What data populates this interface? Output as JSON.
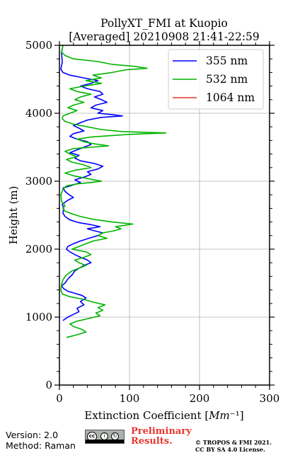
{
  "chart_data": {
    "type": "line",
    "title": [
      "PollyXT_FMI at Kuopio",
      "[Averaged] 20210908 21:41-22:59"
    ],
    "xlabel": "Extinction Coefficient [Mm⁻¹]",
    "ylabel": "Height (m)",
    "xlim": [
      0,
      300
    ],
    "ylim": [
      0,
      5000
    ],
    "xticks": [
      "0",
      "100",
      "200",
      "300"
    ],
    "yticks": [
      "0",
      "1000",
      "2000",
      "3000",
      "4000",
      "5000"
    ],
    "grid": true,
    "legend_position": "top-right",
    "series": [
      {
        "name": "355 nm",
        "color": "#0000ff",
        "points": [
          [
            5,
            950
          ],
          [
            12,
            1000
          ],
          [
            20,
            1040
          ],
          [
            28,
            1080
          ],
          [
            25,
            1130
          ],
          [
            35,
            1180
          ],
          [
            30,
            1230
          ],
          [
            38,
            1280
          ],
          [
            32,
            1320
          ],
          [
            22,
            1350
          ],
          [
            12,
            1380
          ],
          [
            6,
            1420
          ],
          [
            3,
            1460
          ],
          [
            8,
            1500
          ],
          [
            12,
            1560
          ],
          [
            18,
            1620
          ],
          [
            22,
            1680
          ],
          [
            28,
            1720
          ],
          [
            35,
            1760
          ],
          [
            45,
            1800
          ],
          [
            40,
            1840
          ],
          [
            30,
            1880
          ],
          [
            22,
            1920
          ],
          [
            15,
            1960
          ],
          [
            10,
            2000
          ],
          [
            12,
            2040
          ],
          [
            20,
            2080
          ],
          [
            30,
            2120
          ],
          [
            42,
            2160
          ],
          [
            55,
            2200
          ],
          [
            62,
            2240
          ],
          [
            50,
            2270
          ],
          [
            40,
            2300
          ],
          [
            58,
            2330
          ],
          [
            45,
            2360
          ],
          [
            28,
            2390
          ],
          [
            15,
            2430
          ],
          [
            8,
            2480
          ],
          [
            5,
            2530
          ],
          [
            6,
            2600
          ],
          [
            4,
            2660
          ],
          [
            12,
            2720
          ],
          [
            20,
            2760
          ],
          [
            14,
            2800
          ],
          [
            8,
            2850
          ],
          [
            5,
            2900
          ],
          [
            18,
            2940
          ],
          [
            30,
            2980
          ],
          [
            22,
            3020
          ],
          [
            35,
            3060
          ],
          [
            45,
            3100
          ],
          [
            40,
            3140
          ],
          [
            55,
            3180
          ],
          [
            62,
            3220
          ],
          [
            50,
            3260
          ],
          [
            30,
            3300
          ],
          [
            22,
            3340
          ],
          [
            28,
            3380
          ],
          [
            15,
            3420
          ],
          [
            25,
            3460
          ],
          [
            35,
            3500
          ],
          [
            45,
            3540
          ],
          [
            40,
            3580
          ],
          [
            25,
            3620
          ],
          [
            15,
            3660
          ],
          [
            20,
            3700
          ],
          [
            35,
            3740
          ],
          [
            28,
            3780
          ],
          [
            20,
            3820
          ],
          [
            30,
            3860
          ],
          [
            40,
            3900
          ],
          [
            60,
            3940
          ],
          [
            90,
            3960
          ],
          [
            75,
            3980
          ],
          [
            55,
            4000
          ],
          [
            62,
            4040
          ],
          [
            45,
            4080
          ],
          [
            52,
            4120
          ],
          [
            68,
            4160
          ],
          [
            60,
            4200
          ],
          [
            50,
            4240
          ],
          [
            62,
            4280
          ],
          [
            58,
            4320
          ],
          [
            40,
            4360
          ],
          [
            30,
            4400
          ],
          [
            45,
            4440
          ],
          [
            55,
            4480
          ],
          [
            35,
            4520
          ],
          [
            15,
            4560
          ],
          [
            5,
            4600
          ],
          [
            2,
            4650
          ],
          [
            4,
            4750
          ],
          [
            3,
            4900
          ],
          [
            5,
            5000
          ]
        ]
      },
      {
        "name": "532 nm",
        "color": "#00b400",
        "points": [
          [
            10,
            700
          ],
          [
            25,
            740
          ],
          [
            38,
            780
          ],
          [
            32,
            820
          ],
          [
            20,
            860
          ],
          [
            15,
            900
          ],
          [
            25,
            940
          ],
          [
            42,
            980
          ],
          [
            58,
            1020
          ],
          [
            52,
            1060
          ],
          [
            62,
            1100
          ],
          [
            55,
            1140
          ],
          [
            65,
            1180
          ],
          [
            48,
            1220
          ],
          [
            35,
            1260
          ],
          [
            15,
            1300
          ],
          [
            4,
            1340
          ],
          [
            2,
            1400
          ],
          [
            3,
            1480
          ],
          [
            5,
            1550
          ],
          [
            10,
            1620
          ],
          [
            18,
            1680
          ],
          [
            28,
            1720
          ],
          [
            38,
            1760
          ],
          [
            28,
            1800
          ],
          [
            22,
            1840
          ],
          [
            35,
            1880
          ],
          [
            45,
            1920
          ],
          [
            38,
            1960
          ],
          [
            18,
            2000
          ],
          [
            28,
            2040
          ],
          [
            38,
            2080
          ],
          [
            48,
            2120
          ],
          [
            68,
            2160
          ],
          [
            55,
            2200
          ],
          [
            62,
            2240
          ],
          [
            78,
            2270
          ],
          [
            88,
            2300
          ],
          [
            80,
            2330
          ],
          [
            105,
            2370
          ],
          [
            75,
            2400
          ],
          [
            48,
            2440
          ],
          [
            30,
            2480
          ],
          [
            18,
            2520
          ],
          [
            8,
            2560
          ],
          [
            5,
            2600
          ],
          [
            8,
            2640
          ],
          [
            3,
            2700
          ],
          [
            2,
            2800
          ],
          [
            5,
            2880
          ],
          [
            10,
            2930
          ],
          [
            25,
            2960
          ],
          [
            45,
            2980
          ],
          [
            60,
            3000
          ],
          [
            40,
            3040
          ],
          [
            20,
            3080
          ],
          [
            8,
            3120
          ],
          [
            22,
            3160
          ],
          [
            45,
            3200
          ],
          [
            35,
            3240
          ],
          [
            18,
            3280
          ],
          [
            10,
            3320
          ],
          [
            25,
            3360
          ],
          [
            15,
            3400
          ],
          [
            8,
            3440
          ],
          [
            20,
            3480
          ],
          [
            45,
            3500
          ],
          [
            70,
            3520
          ],
          [
            50,
            3550
          ],
          [
            35,
            3580
          ],
          [
            25,
            3620
          ],
          [
            45,
            3650
          ],
          [
            100,
            3690
          ],
          [
            152,
            3710
          ],
          [
            90,
            3730
          ],
          [
            60,
            3760
          ],
          [
            40,
            3800
          ],
          [
            20,
            3840
          ],
          [
            8,
            3880
          ],
          [
            4,
            3920
          ],
          [
            5,
            3960
          ],
          [
            15,
            4000
          ],
          [
            25,
            4040
          ],
          [
            12,
            4080
          ],
          [
            20,
            4120
          ],
          [
            35,
            4160
          ],
          [
            22,
            4200
          ],
          [
            30,
            4240
          ],
          [
            45,
            4280
          ],
          [
            25,
            4320
          ],
          [
            15,
            4360
          ],
          [
            35,
            4400
          ],
          [
            60,
            4440
          ],
          [
            38,
            4480
          ],
          [
            60,
            4520
          ],
          [
            48,
            4560
          ],
          [
            75,
            4600
          ],
          [
            95,
            4640
          ],
          [
            125,
            4660
          ],
          [
            108,
            4690
          ],
          [
            75,
            4720
          ],
          [
            55,
            4760
          ],
          [
            20,
            4800
          ],
          [
            8,
            4850
          ],
          [
            3,
            4900
          ],
          [
            5,
            5000
          ]
        ]
      },
      {
        "name": "1064 nm",
        "color": "#e8362e",
        "points": []
      }
    ]
  },
  "footer": {
    "version": "Version: 2.0",
    "method": "Method: Raman",
    "preliminary": [
      "Preliminary",
      "Results."
    ],
    "copyright": [
      "© TROPOS & FMI 2021.",
      "CC BY SA 4.0 License."
    ]
  }
}
